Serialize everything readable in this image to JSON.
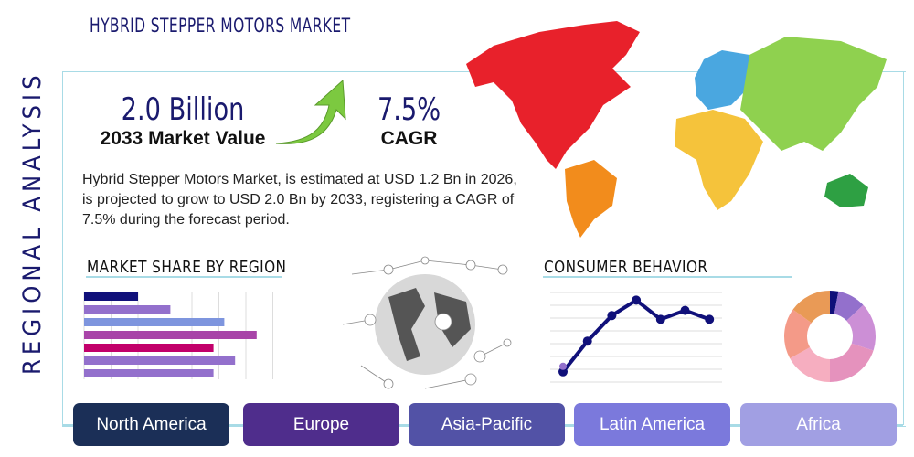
{
  "title": "HYBRID STEPPER MOTORS MARKET",
  "side_label": "REGIONAL ANALYSIS",
  "stats": {
    "market_value": "2.0 Billion",
    "market_value_label": "2033 Market Value",
    "cagr": "7.5%",
    "cagr_label": "CAGR"
  },
  "description": "Hybrid Stepper Motors Market, is estimated at USD 1.2 Bn in 2026, is projected to grow to USD 2.0 Bn by 2033, registering a CAGR of 7.5% during the forecast period.",
  "sections": {
    "market_share": "MARKET SHARE BY REGION",
    "consumer": "CONSUMER BEHAVIOR"
  },
  "regions": [
    {
      "label": "North America",
      "color": "#1b2f57"
    },
    {
      "label": "Europe",
      "color": "#4f2d8c"
    },
    {
      "label": "Asia-Pacific",
      "color": "#5252a6"
    },
    {
      "label": "Latin America",
      "color": "#7b79dc"
    },
    {
      "label": "Africa",
      "color": "#a19fe3"
    }
  ],
  "map_colors": {
    "north_america": "#e8212b",
    "south_america": "#f28c1c",
    "europe": "#4aa7e0",
    "asia": "#8fd14f",
    "africa": "#f5c33b",
    "oceania": "#2ea043"
  },
  "chart_data": [
    {
      "type": "bar",
      "orientation": "horizontal",
      "values": [
        2.0,
        3.2,
        5.2,
        6.4,
        4.8,
        5.6,
        4.8
      ],
      "colors": [
        "#10107a",
        "#9370cc",
        "#7e95de",
        "#a844a8",
        "#c2006b",
        "#9370cc",
        "#9370cc"
      ],
      "xlim": [
        0,
        7
      ],
      "grid": true
    },
    {
      "type": "line",
      "values": [
        0.8,
        3.2,
        5.2,
        6.4,
        4.9,
        5.6,
        4.9
      ],
      "color": "#10107a",
      "ylim": [
        0,
        7
      ],
      "grid": true
    },
    {
      "type": "pie",
      "donut": true,
      "values": [
        3,
        10,
        17,
        20,
        17,
        18,
        15
      ],
      "colors": [
        "#10107a",
        "#9370cc",
        "#cc8fd6",
        "#e592bd",
        "#f6aec0",
        "#f49a88",
        "#e99a56"
      ]
    }
  ]
}
